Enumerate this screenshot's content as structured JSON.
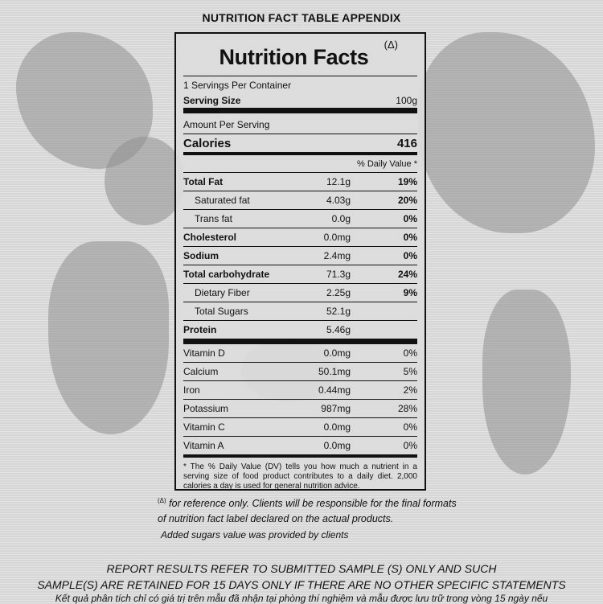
{
  "header": "NUTRITION FACT TABLE APPENDIX",
  "label": {
    "title": "Nutrition Facts",
    "title_mark": "(Δ)",
    "servings_per_container": "1 Servings Per Container",
    "serving_size_label": "Serving Size",
    "serving_size_value": "100g",
    "amount_per_serving": "Amount Per Serving",
    "calories_label": "Calories",
    "calories_value": "416",
    "daily_value_header": "% Daily Value *",
    "nutrients": [
      {
        "name": "Total Fat",
        "amount": "12.1g",
        "dv": "19%"
      },
      {
        "name": "Saturated fat",
        "amount": "4.03g",
        "dv": "20%"
      },
      {
        "name": "Trans fat",
        "amount": "0.0g",
        "dv": "0%"
      },
      {
        "name": "Cholesterol",
        "amount": "0.0mg",
        "dv": "0%"
      },
      {
        "name": "Sodium",
        "amount": "2.4mg",
        "dv": "0%"
      },
      {
        "name": "Total carbohydrate",
        "amount": "71.3g",
        "dv": "24%"
      },
      {
        "name": "Dietary Fiber",
        "amount": "2.25g",
        "dv": "9%"
      },
      {
        "name": "Total Sugars",
        "amount": "52.1g",
        "dv": ""
      },
      {
        "name": "Protein",
        "amount": "5.46g",
        "dv": ""
      }
    ],
    "vitamins": [
      {
        "name": "Vitamin D",
        "amount": "0.0mg",
        "dv": "0%"
      },
      {
        "name": "Calcium",
        "amount": "50.1mg",
        "dv": "5%"
      },
      {
        "name": "Iron",
        "amount": "0.44mg",
        "dv": "2%"
      },
      {
        "name": "Potassium",
        "amount": "987mg",
        "dv": "28%"
      },
      {
        "name": "Vitamin C",
        "amount": "0.0mg",
        "dv": "0%"
      },
      {
        "name": "Vitamin A",
        "amount": "0.0mg",
        "dv": "0%"
      }
    ],
    "footnote": "* The % Daily Value (DV) tells you how much a nutrient in a serving size of food product contributes to a daily diet. 2,000 calories a day is used for general nutrition advice."
  },
  "notes": {
    "reference_mark": "(Δ)",
    "reference_text": "for reference only. Clients will be responsible for the final formats of nutrition fact label declared on the actual products.",
    "added_sugars": "Added sugars value was provided by clients"
  },
  "report": {
    "line1": "REPORT RESULTS REFER TO SUBMITTED SAMPLE (S) ONLY AND SUCH",
    "line2": "SAMPLE(S) ARE RETAINED FOR 15 DAYS ONLY IF THERE ARE NO OTHER SPECIFIC STATEMENTS",
    "line3": "Kết quả phân tích chỉ có giá trị trên mẫu đã nhận tại phòng thí nghiệm và mẫu được lưu trữ trong vòng 15 ngày nếu"
  }
}
